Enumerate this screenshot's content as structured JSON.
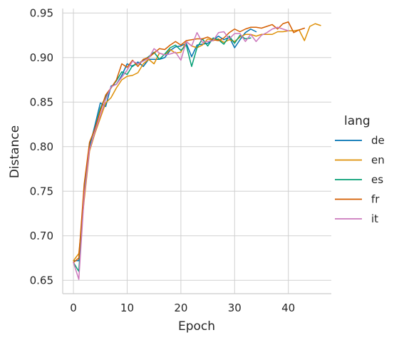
{
  "chart_data": {
    "type": "line",
    "xlabel": "Epoch",
    "ylabel": "Distance",
    "xlim": [
      -2,
      48
    ],
    "ylim": [
      0.635,
      0.955
    ],
    "xticks": [
      0,
      10,
      20,
      30,
      40
    ],
    "yticks": [
      0.65,
      0.7,
      0.75,
      0.8,
      0.85,
      0.9,
      0.95
    ],
    "grid": true,
    "legend": {
      "title": "lang",
      "placement": "right"
    },
    "series": [
      {
        "name": "de",
        "color": "#0173b2",
        "x": [
          0,
          1,
          2,
          3,
          4,
          5,
          6,
          7,
          8,
          9,
          10,
          11,
          12,
          13,
          14,
          15,
          16,
          17,
          18,
          19,
          20,
          21,
          22,
          23,
          24,
          25,
          26,
          27,
          28,
          29,
          30,
          31,
          32,
          33,
          34
        ],
        "y": [
          0.672,
          0.672,
          0.752,
          0.8,
          0.824,
          0.849,
          0.845,
          0.868,
          0.87,
          0.88,
          0.893,
          0.89,
          0.895,
          0.89,
          0.898,
          0.898,
          0.898,
          0.9,
          0.908,
          0.912,
          0.913,
          0.916,
          0.901,
          0.914,
          0.915,
          0.916,
          0.92,
          0.924,
          0.92,
          0.923,
          0.911,
          0.92,
          0.928,
          0.932,
          0.929
        ]
      },
      {
        "name": "en",
        "color": "#de8f05",
        "x": [
          0,
          1,
          2,
          3,
          4,
          5,
          6,
          7,
          8,
          9,
          10,
          11,
          12,
          13,
          14,
          15,
          16,
          17,
          18,
          19,
          20,
          21,
          22,
          23,
          24,
          25,
          26,
          27,
          28,
          29,
          30,
          31,
          32,
          33,
          34,
          35,
          36,
          37,
          38,
          39,
          40,
          41,
          42,
          43,
          44,
          45,
          46
        ],
        "y": [
          0.672,
          0.68,
          0.74,
          0.795,
          0.815,
          0.832,
          0.849,
          0.855,
          0.866,
          0.875,
          0.879,
          0.88,
          0.883,
          0.893,
          0.898,
          0.893,
          0.905,
          0.903,
          0.909,
          0.905,
          0.906,
          0.918,
          0.913,
          0.911,
          0.914,
          0.921,
          0.919,
          0.921,
          0.917,
          0.92,
          0.918,
          0.923,
          0.926,
          0.926,
          0.924,
          0.926,
          0.926,
          0.926,
          0.929,
          0.929,
          0.93,
          0.93,
          0.931,
          0.919,
          0.935,
          0.938,
          0.936
        ]
      },
      {
        "name": "es",
        "color": "#029e73",
        "x": [
          0,
          1,
          2,
          3,
          4,
          5,
          6,
          7,
          8,
          9,
          10,
          11,
          12,
          13,
          14,
          15,
          16,
          17,
          18,
          19,
          20,
          21,
          22,
          23,
          24,
          25,
          26,
          27,
          28,
          29,
          30,
          31,
          32,
          33
        ],
        "y": [
          0.67,
          0.66,
          0.752,
          0.804,
          0.82,
          0.843,
          0.856,
          0.866,
          0.874,
          0.884,
          0.881,
          0.891,
          0.893,
          0.897,
          0.901,
          0.906,
          0.898,
          0.904,
          0.911,
          0.914,
          0.908,
          0.914,
          0.89,
          0.911,
          0.921,
          0.913,
          0.922,
          0.92,
          0.915,
          0.924,
          0.916,
          0.925,
          0.921,
          0.922
        ]
      },
      {
        "name": "fr",
        "color": "#d55e00",
        "x": [
          0,
          1,
          2,
          3,
          4,
          5,
          6,
          7,
          8,
          9,
          10,
          11,
          12,
          13,
          14,
          15,
          16,
          17,
          18,
          19,
          20,
          21,
          22,
          23,
          24,
          25,
          26,
          27,
          28,
          29,
          30,
          31,
          32,
          33,
          34,
          35,
          36,
          37,
          38,
          39,
          40,
          41,
          42,
          43
        ],
        "y": [
          0.67,
          0.675,
          0.758,
          0.805,
          0.82,
          0.84,
          0.858,
          0.866,
          0.875,
          0.893,
          0.889,
          0.897,
          0.89,
          0.898,
          0.9,
          0.905,
          0.91,
          0.909,
          0.914,
          0.918,
          0.914,
          0.919,
          0.92,
          0.921,
          0.921,
          0.923,
          0.92,
          0.919,
          0.922,
          0.928,
          0.932,
          0.929,
          0.932,
          0.934,
          0.934,
          0.933,
          0.935,
          0.937,
          0.932,
          0.938,
          0.94,
          0.928,
          0.931,
          0.933
        ]
      },
      {
        "name": "it",
        "color": "#cc78bc",
        "x": [
          0,
          1,
          2,
          3,
          4,
          5,
          6,
          7,
          8,
          9,
          10,
          11,
          12,
          13,
          14,
          15,
          16,
          17,
          18,
          19,
          20,
          21,
          22,
          23,
          24,
          25,
          26,
          27,
          28,
          29,
          30,
          31,
          32,
          33,
          34,
          35,
          36,
          37,
          38,
          39,
          40
        ],
        "y": [
          0.67,
          0.651,
          0.745,
          0.797,
          0.817,
          0.835,
          0.853,
          0.867,
          0.87,
          0.878,
          0.886,
          0.896,
          0.893,
          0.896,
          0.899,
          0.91,
          0.905,
          0.903,
          0.904,
          0.906,
          0.897,
          0.918,
          0.913,
          0.928,
          0.917,
          0.918,
          0.919,
          0.928,
          0.929,
          0.921,
          0.927,
          0.927,
          0.918,
          0.926,
          0.918,
          0.925,
          0.928,
          0.932,
          0.934,
          0.932,
          0.93
        ]
      }
    ]
  }
}
